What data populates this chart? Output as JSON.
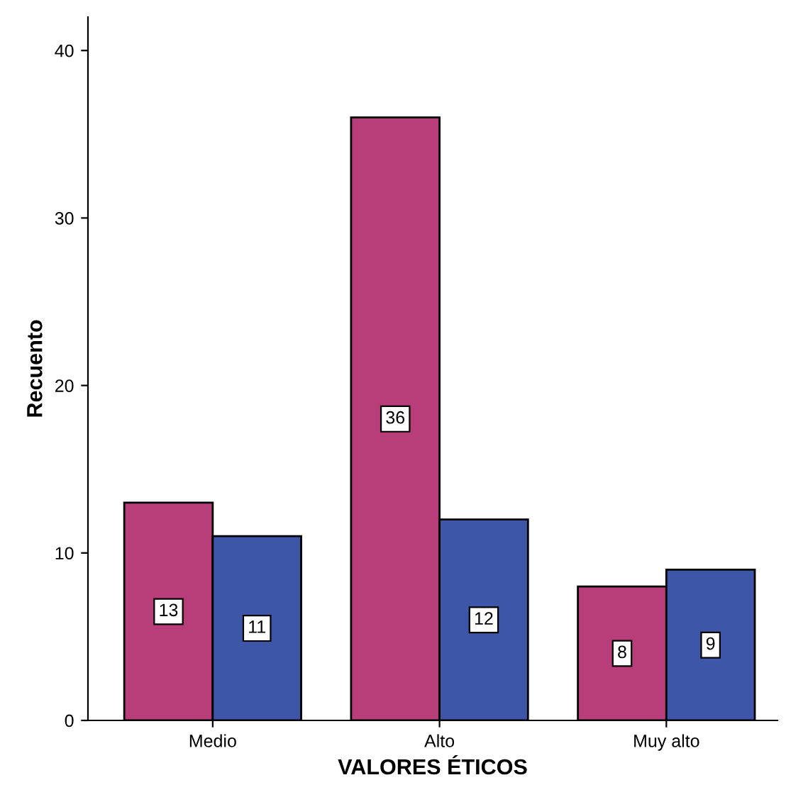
{
  "chart_data": {
    "type": "bar",
    "xlabel": "VALORES ÉTICOS",
    "ylabel": "Recuento",
    "categories": [
      "Medio",
      "Alto",
      "Muy alto"
    ],
    "series": [
      {
        "color": "#b73e78",
        "values": [
          13,
          36,
          8
        ]
      },
      {
        "color": "#3e56a8",
        "values": [
          11,
          12,
          9
        ]
      }
    ],
    "ylim": [
      0,
      42
    ],
    "yticks": [
      0,
      10,
      20,
      30,
      40
    ],
    "data_labels": true,
    "grid": false,
    "legend": false
  }
}
